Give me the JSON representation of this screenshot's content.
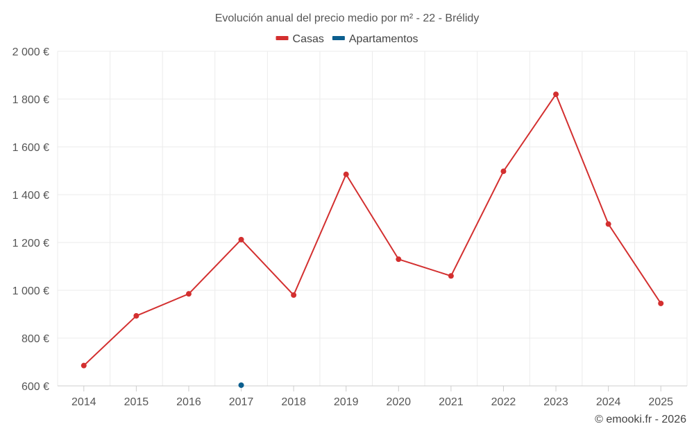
{
  "chart_data": {
    "type": "line",
    "title": "Evolución anual del precio medio por m² - 22 - Brélidy",
    "categories": [
      "2014",
      "2015",
      "2016",
      "2017",
      "2018",
      "2019",
      "2020",
      "2021",
      "2022",
      "2023",
      "2024",
      "2025"
    ],
    "series": [
      {
        "name": "Casas",
        "color": "#d32f2f",
        "values": [
          685,
          893,
          985,
          1212,
          980,
          1485,
          1130,
          1060,
          1498,
          1820,
          1277,
          945
        ]
      },
      {
        "name": "Apartamentos",
        "color": "#0b5e8e",
        "values": [
          null,
          null,
          null,
          603,
          null,
          null,
          null,
          null,
          null,
          null,
          null,
          null
        ]
      }
    ],
    "ylim": [
      600,
      2000
    ],
    "yticks": [
      600,
      800,
      1000,
      1200,
      1400,
      1600,
      1800,
      2000
    ],
    "ytick_labels": [
      "600 €",
      "800 €",
      "1 000 €",
      "1 200 €",
      "1 400 €",
      "1 600 €",
      "1 800 €",
      "2 000 €"
    ],
    "xlabel": "",
    "ylabel": "",
    "legend_position": "top-center",
    "grid": true
  },
  "credit": "© emooki.fr - 2026"
}
